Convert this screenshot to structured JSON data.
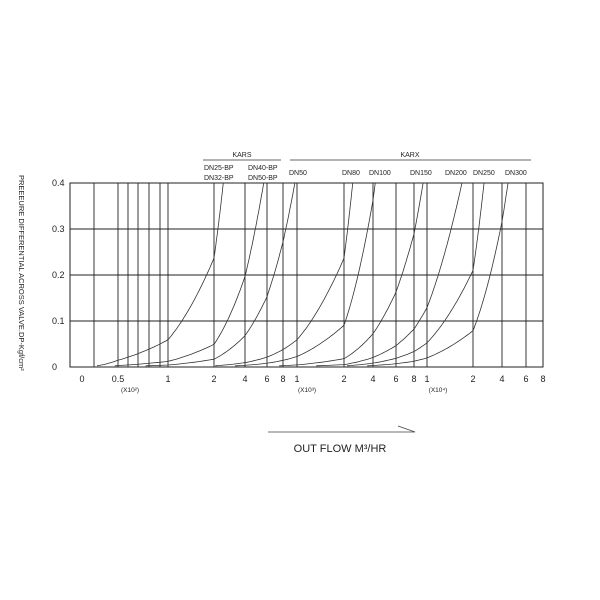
{
  "chart_data": {
    "type": "line",
    "title": "",
    "xlabel": "OUT FLOW M³/HR",
    "ylabel": "PREEEURE DIFFERENTIAL ACROSS VALVE.DP-Kgf/cm²",
    "ylim": [
      0,
      0.4
    ],
    "y_ticks": [
      "0",
      "0.1",
      "0.2",
      "0.3",
      "0.4"
    ],
    "x_scale": "log",
    "x_ticks": [
      {
        "label": "0",
        "value": 0
      },
      {
        "label": "0.5",
        "value": 50
      },
      {
        "label": "1",
        "value": 100
      },
      {
        "label": "2",
        "value": 200
      },
      {
        "label": "4",
        "value": 400
      },
      {
        "label": "6",
        "value": 600
      },
      {
        "label": "8",
        "value": 800
      },
      {
        "label": "1",
        "value": 1000
      },
      {
        "label": "2",
        "value": 2000
      },
      {
        "label": "4",
        "value": 4000
      },
      {
        "label": "6",
        "value": 6000
      },
      {
        "label": "8",
        "value": 8000
      },
      {
        "label": "1",
        "value": 10000
      },
      {
        "label": "2",
        "value": 20000
      },
      {
        "label": "4",
        "value": 40000
      },
      {
        "label": "6",
        "value": 60000
      },
      {
        "label": "8",
        "value": 80000
      }
    ],
    "x_multipliers": [
      "(X10²)",
      "(X10³)",
      "(X10⁴)"
    ],
    "grid": true,
    "groups": [
      {
        "name": "KARS",
        "labels": [
          "DN25-BP",
          "DN32-BP",
          "DN40-BP",
          "DN50-BP"
        ]
      },
      {
        "name": "KARX",
        "labels": [
          "DN50",
          "DN80",
          "DN100",
          "DN150",
          "DN200",
          "DN250",
          "DN300"
        ]
      }
    ],
    "series": [
      {
        "x": [
          26,
          78,
          130,
          182,
          208,
          234,
          260
        ],
        "y": [
          0.004,
          0.036,
          0.1,
          0.196,
          0.256,
          0.324,
          0.4
        ]
      },
      {
        "x": [
          57,
          171,
          285,
          399,
          456,
          513,
          570
        ],
        "y": [
          0.004,
          0.036,
          0.1,
          0.196,
          0.256,
          0.324,
          0.4
        ]
      },
      {
        "x": [
          97,
          291,
          485,
          679,
          776,
          873,
          970
        ],
        "y": [
          0.004,
          0.036,
          0.1,
          0.196,
          0.256,
          0.324,
          0.4
        ]
      },
      {
        "x": [
          260,
          780,
          1300,
          1820,
          2080,
          2340,
          2600
        ],
        "y": [
          0.004,
          0.036,
          0.1,
          0.196,
          0.256,
          0.324,
          0.4
        ]
      },
      {
        "x": [
          420,
          1260,
          2100,
          2940,
          3360,
          3780,
          4200
        ],
        "y": [
          0.004,
          0.036,
          0.1,
          0.196,
          0.256,
          0.324,
          0.4
        ]
      },
      {
        "x": [
          940,
          2820,
          4700,
          6580,
          7520,
          8460,
          9400
        ],
        "y": [
          0.004,
          0.036,
          0.1,
          0.196,
          0.256,
          0.324,
          0.4
        ]
      },
      {
        "x": [
          1760,
          5280,
          8800,
          12320,
          14080,
          15840,
          17600
        ],
        "y": [
          0.004,
          0.036,
          0.1,
          0.196,
          0.256,
          0.324,
          0.4
        ]
      },
      {
        "x": [
          2760,
          8280,
          13800,
          19320,
          22080,
          24840,
          27600
        ],
        "y": [
          0.004,
          0.036,
          0.1,
          0.196,
          0.256,
          0.324,
          0.4
        ]
      },
      {
        "x": [
          4500,
          13500,
          22500,
          31500,
          36000,
          40500,
          45000
        ],
        "y": [
          0.004,
          0.036,
          0.1,
          0.196,
          0.256,
          0.324,
          0.4
        ]
      }
    ]
  }
}
